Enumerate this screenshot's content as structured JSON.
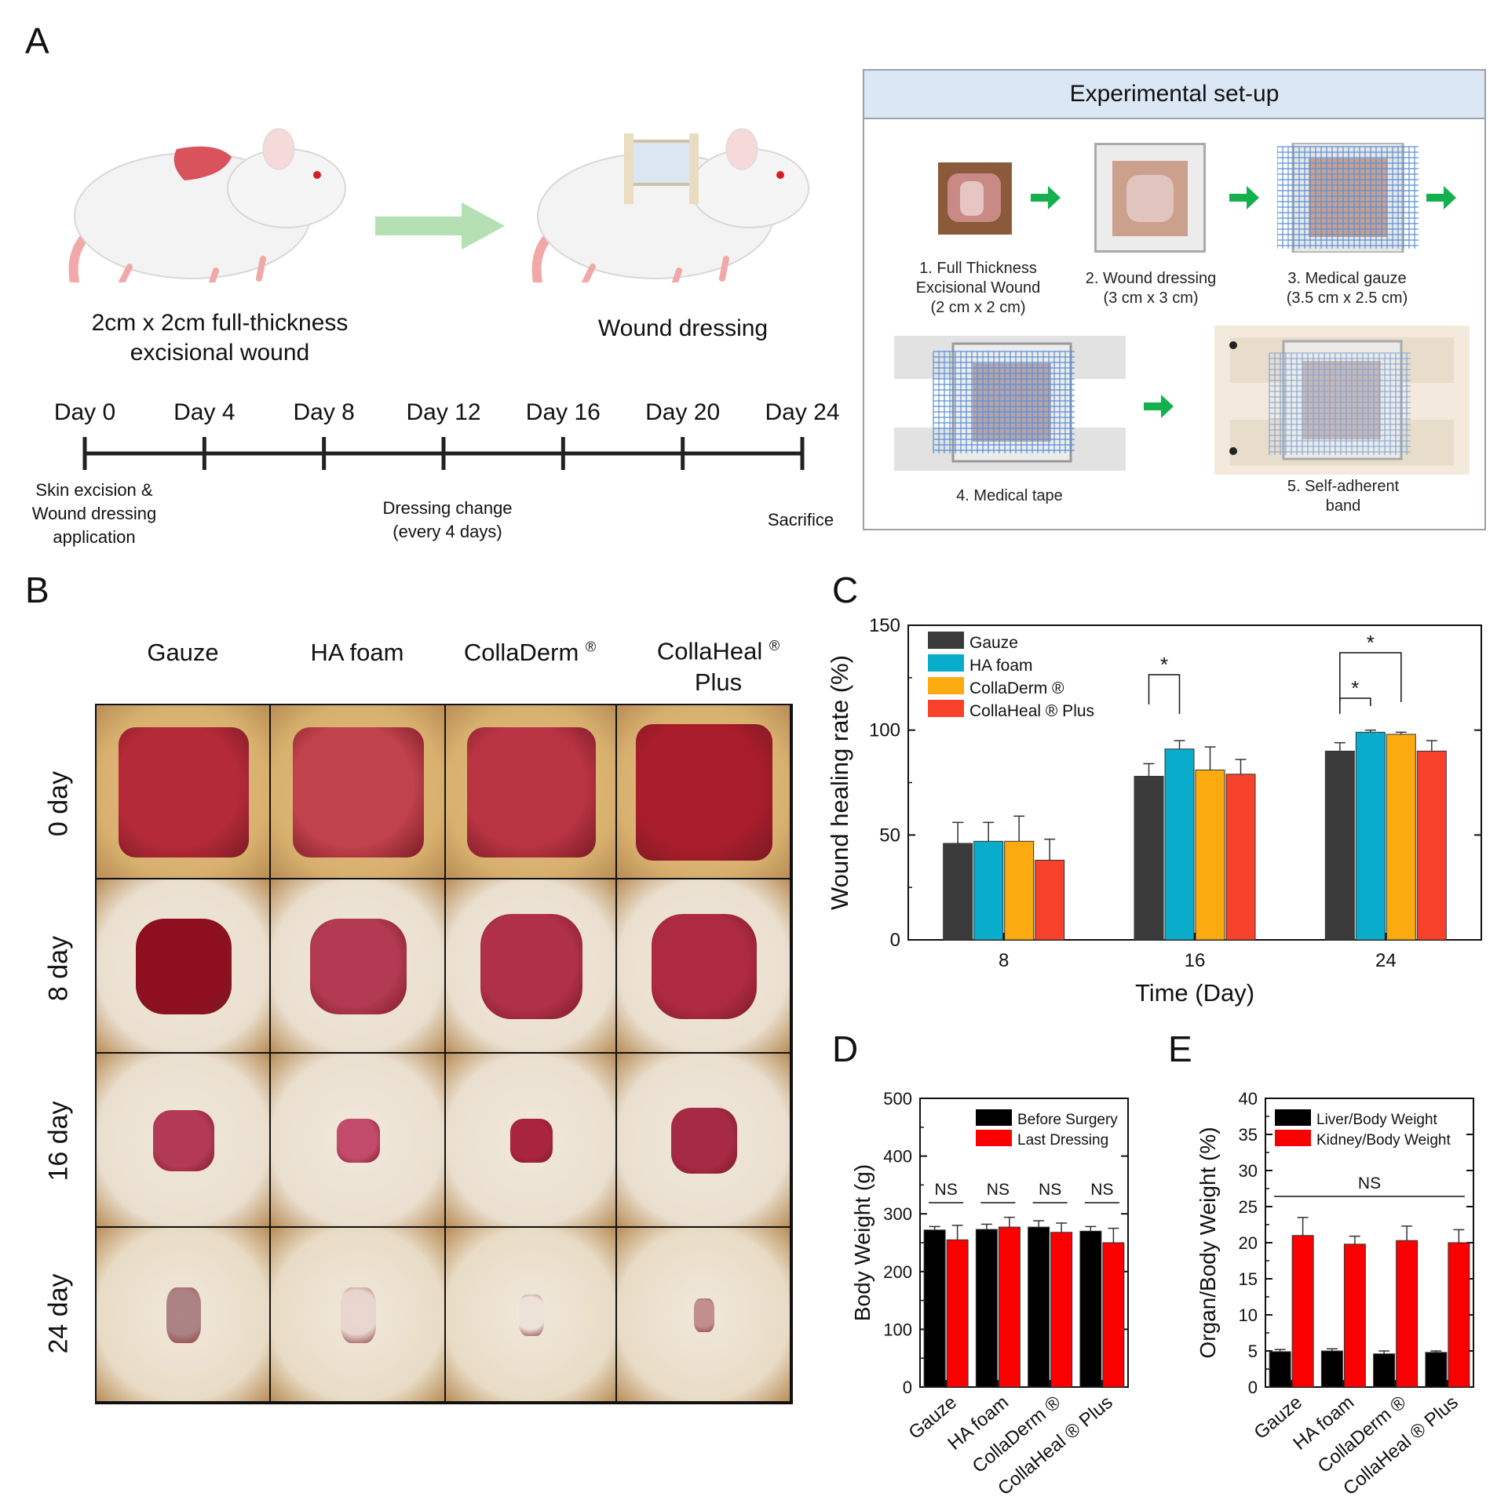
{
  "panels": {
    "a": "A",
    "b": "B",
    "c": "C",
    "d": "D",
    "e": "E"
  },
  "panel_a": {
    "wound_caption_line1": "2cm x 2cm full-thickness",
    "wound_caption_line2": "excisional wound",
    "dressing_caption": "Wound dressing",
    "timeline_days": [
      "Day 0",
      "Day 4",
      "Day 8",
      "Day 12",
      "Day 16",
      "Day 20",
      "Day 24"
    ],
    "start_note": [
      "Skin excision &",
      "Wound dressing",
      "application"
    ],
    "change_note": [
      "Dressing change",
      "(every 4 days)"
    ],
    "end_note": "Sacrifice",
    "setup_title": "Experimental set-up",
    "steps": [
      [
        "1. Full Thickness",
        "Excisional Wound",
        "(2 cm x 2 cm)"
      ],
      [
        "2. Wound dressing",
        "(3 cm x 3 cm)"
      ],
      [
        "3. Medical gauze",
        "(3.5 cm x 2.5 cm)"
      ],
      [
        "4. Medical tape"
      ],
      [
        "5. Self-adherent",
        "band"
      ]
    ]
  },
  "panel_b": {
    "columns": [
      "Gauze",
      "HA foam",
      "CollaDerm",
      "CollaHeal",
      "Plus"
    ],
    "registered_mark": "®",
    "rows": [
      "0 day",
      "8 day",
      "16 day",
      "24 day"
    ]
  },
  "chart_data": [
    {
      "id": "C",
      "type": "bar",
      "xlabel": "Time (Day)",
      "ylabel": "Wound healing rate (%)",
      "ylim": [
        0,
        150
      ],
      "yticks": [
        "0",
        "50",
        "100",
        "150"
      ],
      "categories": [
        "8",
        "16",
        "24"
      ],
      "legend_position": "top-left",
      "series": [
        {
          "name": "Gauze",
          "color": "#3b3b3b",
          "values": [
            46,
            78,
            90
          ],
          "errors": [
            10,
            6,
            4
          ]
        },
        {
          "name": "HA foam",
          "color": "#0aaccc",
          "values": [
            47,
            91,
            99
          ],
          "errors": [
            9,
            4,
            1
          ]
        },
        {
          "name": "CollaDerm ®",
          "color": "#fbab0f",
          "values": [
            47,
            81,
            98
          ],
          "errors": [
            12,
            11,
            1
          ]
        },
        {
          "name": "CollaHeal ® Plus",
          "color": "#f7412a",
          "values": [
            38,
            79,
            90
          ],
          "errors": [
            10,
            7,
            5
          ]
        }
      ],
      "annotations": [
        {
          "text": "*",
          "day": "16",
          "between": [
            "Gauze",
            "HA foam"
          ]
        },
        {
          "text": "*",
          "day": "24",
          "between": [
            "Gauze",
            "HA foam"
          ]
        },
        {
          "text": "*",
          "day": "24",
          "between": [
            "Gauze",
            "CollaDerm ®"
          ]
        }
      ]
    },
    {
      "id": "D",
      "type": "bar",
      "xlabel": "",
      "ylabel": "Body Weight (g)",
      "ylim": [
        0,
        500
      ],
      "yticks": [
        "0",
        "100",
        "200",
        "300",
        "400",
        "500"
      ],
      "categories": [
        "Gauze",
        "HA foam",
        "CollaDerm ®",
        "CollaHeal ® Plus"
      ],
      "legend_position": "top-right",
      "series": [
        {
          "name": "Before Surgery",
          "color": "#000000",
          "values": [
            272,
            273,
            277,
            270
          ],
          "errors": [
            6,
            9,
            11,
            8
          ]
        },
        {
          "name": "Last Dressing",
          "color": "#fa0000",
          "values": [
            255,
            277,
            268,
            250
          ],
          "errors": [
            25,
            17,
            16,
            25
          ]
        }
      ],
      "annotations": [
        {
          "text": "NS",
          "category": "Gauze"
        },
        {
          "text": "NS",
          "category": "HA foam"
        },
        {
          "text": "NS",
          "category": "CollaDerm ®"
        },
        {
          "text": "NS",
          "category": "CollaHeal ® Plus"
        }
      ]
    },
    {
      "id": "E",
      "type": "bar",
      "xlabel": "",
      "ylabel": "Organ/Body Weight (%)",
      "ylim": [
        0,
        40
      ],
      "yticks": [
        "0",
        "5",
        "10",
        "15",
        "20",
        "25",
        "30",
        "35",
        "40"
      ],
      "categories": [
        "Gauze",
        "HA foam",
        "CollaDerm ®",
        "CollaHeal ® Plus"
      ],
      "legend_position": "top-left",
      "series": [
        {
          "name": "Liver/Body Weight",
          "color": "#000000",
          "values": [
            4.9,
            5.0,
            4.6,
            4.8
          ],
          "errors": [
            0.3,
            0.3,
            0.4,
            0.2
          ]
        },
        {
          "name": "Kidney/Body Weight",
          "color": "#fa0000",
          "values": [
            21.0,
            19.8,
            20.3,
            20.0
          ],
          "errors": [
            2.5,
            1.1,
            2.0,
            1.8
          ]
        }
      ],
      "annotations": [
        {
          "text": "NS",
          "span": "all"
        }
      ]
    }
  ]
}
